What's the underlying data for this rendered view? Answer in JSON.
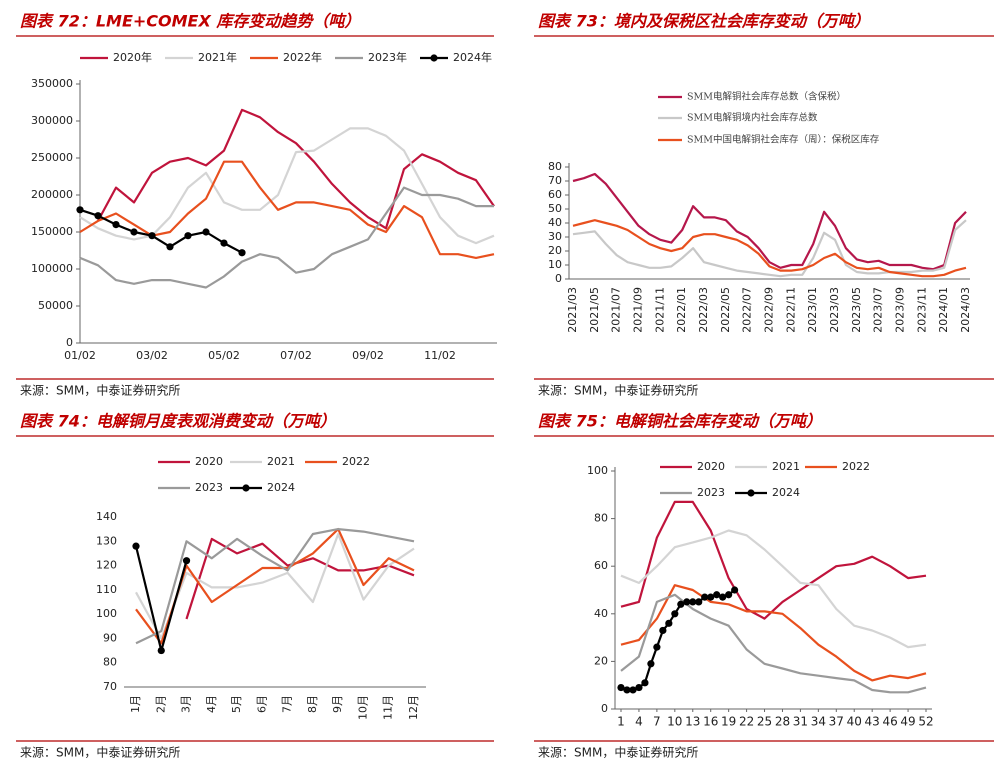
{
  "chart_data": [
    {
      "type": "line",
      "title": "图表 72：LME+COMEX 库存变动趋势（吨）",
      "source": "来源：SMM，中泰证券研究所",
      "categories": [
        "01/02",
        null,
        null,
        null,
        "03/02",
        null,
        null,
        null,
        "05/02",
        null,
        null,
        null,
        "07/02",
        null,
        null,
        null,
        "09/02",
        null,
        null,
        null,
        "11/02",
        null,
        null,
        null
      ],
      "ylim": [
        0,
        350000
      ],
      "yticks": [
        0,
        50000,
        100000,
        150000,
        200000,
        250000,
        300000,
        350000
      ],
      "series": [
        {
          "name": "2020年",
          "color": "#c0143c",
          "values": [
            null,
            165000,
            210000,
            190000,
            230000,
            245000,
            250000,
            240000,
            260000,
            315000,
            305000,
            285000,
            270000,
            245000,
            215000,
            190000,
            170000,
            155000,
            235000,
            255000,
            245000,
            230000,
            220000,
            185000
          ]
        },
        {
          "name": "2021年",
          "color": "#d4d4d4",
          "values": [
            170000,
            155000,
            145000,
            140000,
            145000,
            170000,
            210000,
            230000,
            190000,
            180000,
            180000,
            200000,
            258000,
            260000,
            275000,
            290000,
            290000,
            280000,
            260000,
            215000,
            170000,
            145000,
            135000,
            145000
          ]
        },
        {
          "name": "2022年",
          "color": "#e8501e",
          "values": [
            150000,
            165000,
            175000,
            160000,
            145000,
            150000,
            175000,
            195000,
            245000,
            245000,
            210000,
            180000,
            190000,
            190000,
            185000,
            180000,
            160000,
            150000,
            185000,
            170000,
            120000,
            120000,
            115000,
            120000
          ]
        },
        {
          "name": "2023年",
          "color": "#9a9a9a",
          "values": [
            115000,
            105000,
            85000,
            80000,
            85000,
            85000,
            80000,
            75000,
            90000,
            110000,
            120000,
            115000,
            95000,
            100000,
            120000,
            130000,
            140000,
            175000,
            210000,
            200000,
            200000,
            195000,
            185000,
            185000
          ]
        },
        {
          "name": "2024年",
          "color": "#000000",
          "markers": true,
          "values": [
            180000,
            172000,
            160000,
            150000,
            145000,
            130000,
            145000,
            150000,
            135000,
            122000,
            null,
            null,
            null,
            null,
            null,
            null,
            null,
            null,
            null,
            null,
            null,
            null,
            null,
            null
          ]
        }
      ]
    },
    {
      "type": "line",
      "title": "图表 73：境内及保税区社会库存变动（万吨）",
      "source": "来源：SMM，中泰证券研究所",
      "categories": [
        "2021/03",
        null,
        "2021/05",
        null,
        "2021/07",
        null,
        "2021/09",
        null,
        "2021/11",
        null,
        "2022/01",
        null,
        "2022/03",
        null,
        "2022/05",
        null,
        "2022/07",
        null,
        "2022/09",
        null,
        "2022/11",
        null,
        "2023/01",
        null,
        "2023/03",
        null,
        "2023/05",
        null,
        "2023/07",
        null,
        "2023/09",
        null,
        "2023/11",
        null,
        "2024/01",
        null,
        "2024/03"
      ],
      "ylim": [
        0,
        80
      ],
      "yticks": [
        0,
        10,
        20,
        30,
        40,
        50,
        60,
        70,
        80
      ],
      "series": [
        {
          "name": "SMM电解铜社会库存总数（含保税）",
          "color": "#b5174b",
          "values": [
            70,
            72,
            75,
            68,
            58,
            48,
            38,
            32,
            28,
            26,
            35,
            52,
            44,
            44,
            42,
            34,
            30,
            22,
            12,
            8,
            10,
            10,
            25,
            48,
            38,
            22,
            14,
            12,
            13,
            10,
            10,
            10,
            8,
            7,
            10,
            40,
            48
          ]
        },
        {
          "name": "SMM电解铜境内社会库存总数",
          "color": "#c8c8c8",
          "values": [
            32,
            33,
            34,
            25,
            17,
            12,
            10,
            8,
            8,
            9,
            15,
            22,
            12,
            10,
            8,
            6,
            5,
            4,
            3,
            2,
            3,
            3,
            15,
            33,
            28,
            10,
            5,
            4,
            4,
            5,
            5,
            5,
            6,
            6,
            8,
            35,
            42
          ]
        },
        {
          "name": "SMM中国电解铜社会库存（周）：保税区库存",
          "color": "#e8501e",
          "values": [
            38,
            40,
            42,
            40,
            38,
            35,
            30,
            25,
            22,
            20,
            22,
            30,
            32,
            32,
            30,
            28,
            24,
            18,
            9,
            6,
            6,
            7,
            10,
            15,
            18,
            12,
            8,
            7,
            8,
            5,
            4,
            3,
            2,
            2,
            3,
            6,
            8
          ]
        }
      ]
    },
    {
      "type": "line",
      "title": "图表 74：电解铜月度表观消费变动（万吨）",
      "source": "来源：SMM，中泰证券研究所",
      "categories": [
        "1月",
        "2月",
        "3月",
        "4月",
        "5月",
        "6月",
        "7月",
        "8月",
        "9月",
        "10月",
        "11月",
        "12月"
      ],
      "ylim": [
        70,
        140
      ],
      "yticks": [
        70,
        80,
        90,
        100,
        110,
        120,
        130,
        140
      ],
      "series": [
        {
          "name": "2020",
          "color": "#c0143c",
          "values": [
            null,
            null,
            98,
            131,
            125,
            129,
            120,
            123,
            118,
            118,
            120,
            116
          ]
        },
        {
          "name": "2021",
          "color": "#d4d4d4",
          "values": [
            109,
            90,
            117,
            111,
            111,
            113,
            117,
            105,
            133,
            106,
            120,
            127
          ]
        },
        {
          "name": "2022",
          "color": "#e8501e",
          "values": [
            102,
            88,
            120,
            105,
            112,
            119,
            119,
            125,
            135,
            112,
            123,
            118
          ]
        },
        {
          "name": "2023",
          "color": "#9a9a9a",
          "values": [
            88,
            93,
            130,
            123,
            131,
            124,
            118,
            133,
            135,
            134,
            132,
            130
          ]
        },
        {
          "name": "2024",
          "color": "#000000",
          "markers": true,
          "values": [
            128,
            85,
            122,
            null,
            null,
            null,
            null,
            null,
            null,
            null,
            null,
            null
          ]
        }
      ]
    },
    {
      "type": "line",
      "title": "图表 75：电解铜社会库存变动（万吨）",
      "source": "来源：SMM，中泰证券研究所",
      "xlim": [
        1,
        52
      ],
      "xticks": [
        1,
        4,
        7,
        10,
        13,
        16,
        19,
        22,
        25,
        28,
        31,
        34,
        37,
        40,
        43,
        46,
        49,
        52
      ],
      "ylim": [
        0,
        100
      ],
      "yticks": [
        0,
        20,
        40,
        60,
        80,
        100
      ],
      "series": [
        {
          "name": "2020",
          "color": "#c0143c",
          "x": [
            1,
            4,
            7,
            10,
            13,
            16,
            19,
            22,
            25,
            28,
            31,
            34,
            37,
            40,
            43,
            46,
            49,
            52
          ],
          "values": [
            43,
            45,
            72,
            87,
            87,
            75,
            55,
            42,
            38,
            45,
            50,
            55,
            60,
            61,
            64,
            60,
            55,
            56
          ]
        },
        {
          "name": "2021",
          "color": "#d4d4d4",
          "x": [
            1,
            4,
            7,
            10,
            13,
            16,
            19,
            22,
            25,
            28,
            31,
            34,
            37,
            40,
            43,
            46,
            49,
            52
          ],
          "values": [
            56,
            53,
            60,
            68,
            70,
            72,
            75,
            73,
            67,
            60,
            53,
            52,
            42,
            35,
            33,
            30,
            26,
            27
          ]
        },
        {
          "name": "2022",
          "color": "#e8501e",
          "x": [
            1,
            4,
            7,
            10,
            13,
            16,
            19,
            22,
            25,
            28,
            31,
            34,
            37,
            40,
            43,
            46,
            49,
            52
          ],
          "values": [
            27,
            29,
            38,
            52,
            50,
            45,
            44,
            41,
            41,
            40,
            34,
            27,
            22,
            16,
            12,
            14,
            13,
            15
          ]
        },
        {
          "name": "2023",
          "color": "#9a9a9a",
          "x": [
            1,
            4,
            7,
            10,
            13,
            16,
            19,
            22,
            25,
            28,
            31,
            34,
            37,
            40,
            43,
            46,
            49,
            52
          ],
          "values": [
            16,
            22,
            45,
            48,
            42,
            38,
            35,
            25,
            19,
            17,
            15,
            14,
            13,
            12,
            8,
            7,
            7,
            9
          ]
        },
        {
          "name": "2024",
          "color": "#000000",
          "markers": true,
          "x": [
            1,
            2,
            3,
            4,
            5,
            6,
            7,
            8,
            9,
            10,
            11,
            12,
            13,
            14,
            15,
            16,
            17,
            18,
            19,
            20
          ],
          "values": [
            9,
            8,
            8,
            9,
            11,
            19,
            26,
            33,
            36,
            40,
            44,
            45,
            45,
            45,
            47,
            47,
            48,
            47,
            48,
            50
          ]
        }
      ]
    }
  ]
}
